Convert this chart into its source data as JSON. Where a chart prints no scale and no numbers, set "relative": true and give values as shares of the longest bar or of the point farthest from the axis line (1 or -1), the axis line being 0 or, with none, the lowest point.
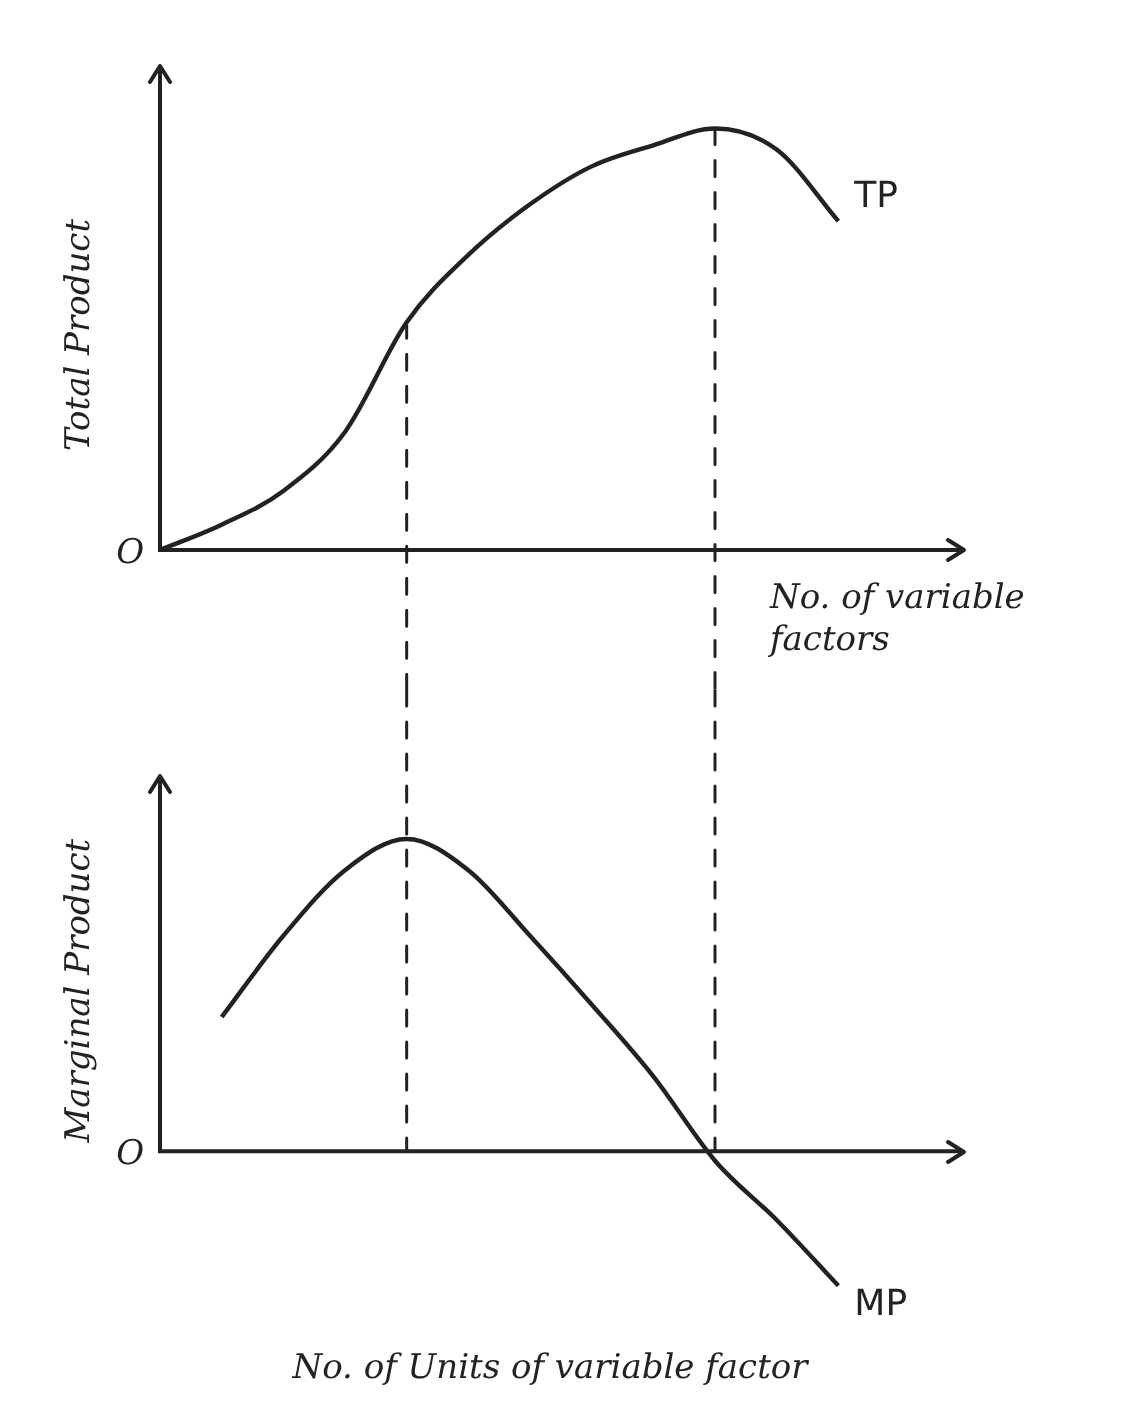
{
  "chart_data": [
    {
      "type": "line",
      "ylabel": "Total Product",
      "xlabel": "No. of variable factors",
      "annotations": [
        "O"
      ],
      "relative": true,
      "legend": false,
      "marker": "none",
      "line_style": "solid",
      "categories": [
        null,
        null,
        null,
        null,
        null,
        null,
        null,
        null,
        null,
        null,
        null,
        null,
        null
      ],
      "series": [
        {
          "name": "TP",
          "color": "#222222",
          "values": [
            0,
            0.06,
            0.14,
            0.28,
            0.54,
            0.7,
            0.82,
            0.91,
            0.96,
            1,
            0.95,
            0.78,
            null
          ]
        }
      ]
    },
    {
      "type": "line",
      "ylabel": "Marginal Product",
      "xlabel": "No. of Units of variable factor",
      "annotations": [
        "O"
      ],
      "relative": true,
      "legend": false,
      "marker": "none",
      "line_style": "solid",
      "categories": [
        null,
        null,
        null,
        null,
        null,
        null,
        null,
        null,
        null,
        null,
        null,
        null,
        null
      ],
      "series": [
        {
          "name": "MP",
          "color": "#222222",
          "values": [
            null,
            0.43,
            0.69,
            0.9,
            1,
            0.9,
            0.69,
            0.47,
            0.24,
            -0.03,
            -0.22,
            -0.43,
            null
          ]
        }
      ]
    }
  ]
}
